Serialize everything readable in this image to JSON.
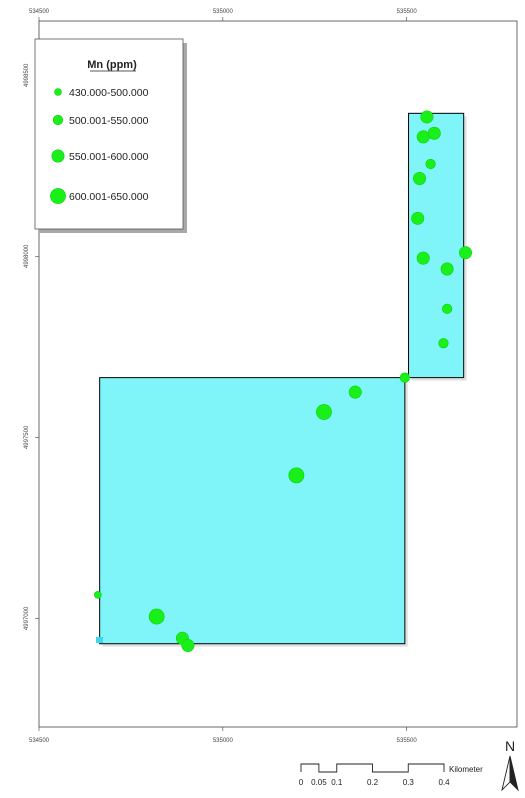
{
  "map": {
    "frame": {
      "x_min": 534500,
      "x_max": 535800,
      "y_min": 4996700,
      "y_max": 4998650
    },
    "x_ticks": [
      {
        "label": "534500",
        "value": 534500
      },
      {
        "label": "535000",
        "value": 535000
      },
      {
        "label": "535500",
        "value": 535500
      }
    ],
    "y_ticks": [
      {
        "label": "4998500",
        "value": 4998500
      },
      {
        "label": "4998000",
        "value": 4998000
      },
      {
        "label": "4997500",
        "value": 4997500
      },
      {
        "label": "4997000",
        "value": 4997000
      }
    ],
    "polygons": [
      {
        "name": "lower-survey-area",
        "x": [
          534665,
          535495
        ],
        "y": [
          4996930,
          4997665
        ]
      },
      {
        "name": "upper-survey-area",
        "x": [
          535505,
          535655
        ],
        "y": [
          4997665,
          4998395
        ]
      }
    ],
    "samples": [
      {
        "x": 534660,
        "y": 4997065,
        "class": 0
      },
      {
        "x": 534820,
        "y": 4997005,
        "class": 3
      },
      {
        "x": 534890,
        "y": 4996945,
        "class": 2
      },
      {
        "x": 534905,
        "y": 4996925,
        "class": 2
      },
      {
        "x": 535200,
        "y": 4997395,
        "class": 3
      },
      {
        "x": 535275,
        "y": 4997570,
        "class": 3
      },
      {
        "x": 535360,
        "y": 4997625,
        "class": 2
      },
      {
        "x": 535495,
        "y": 4997665,
        "class": 1
      },
      {
        "x": 535555,
        "y": 4998385,
        "class": 2
      },
      {
        "x": 535545,
        "y": 4998330,
        "class": 2
      },
      {
        "x": 535575,
        "y": 4998340,
        "class": 2
      },
      {
        "x": 535565,
        "y": 4998255,
        "class": 1
      },
      {
        "x": 535535,
        "y": 4998215,
        "class": 2
      },
      {
        "x": 535530,
        "y": 4998105,
        "class": 2
      },
      {
        "x": 535545,
        "y": 4997995,
        "class": 2
      },
      {
        "x": 535660,
        "y": 4998010,
        "class": 2
      },
      {
        "x": 535610,
        "y": 4997965,
        "class": 2
      },
      {
        "x": 535610,
        "y": 4997855,
        "class": 1
      },
      {
        "x": 535600,
        "y": 4997760,
        "class": 1
      }
    ],
    "colors": {
      "polygon_fill": "#7ff5f9",
      "polygon_stroke": "#000000",
      "point": "#19f019",
      "point_edge": "#0fd10f"
    }
  },
  "legend": {
    "title": "Mn (ppm)",
    "classes": [
      {
        "label": "430.000-500.000"
      },
      {
        "label": "500.001-550.000"
      },
      {
        "label": "550.001-600.000"
      },
      {
        "label": "600.001-650.000"
      }
    ]
  },
  "scale_bar": {
    "unit": "Kilometer",
    "ticks": [
      {
        "label": "0",
        "value": 0
      },
      {
        "label": "0.05",
        "value": 0.05
      },
      {
        "label": "0.1",
        "value": 0.1
      },
      {
        "label": "0.2",
        "value": 0.2
      },
      {
        "label": "0.3",
        "value": 0.3
      },
      {
        "label": "0.4",
        "value": 0.4
      }
    ]
  },
  "north_arrow": {
    "label": "N"
  }
}
